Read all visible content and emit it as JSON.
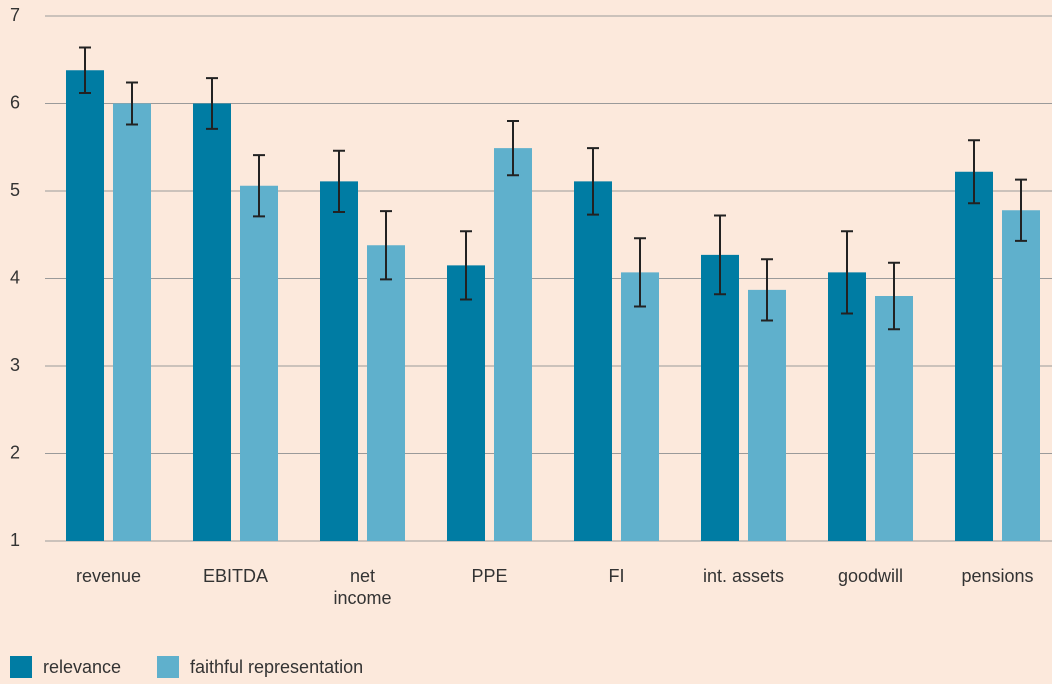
{
  "chart_data": {
    "type": "bar",
    "categories": [
      "revenue",
      "EBITDA",
      "net income",
      "PPE",
      "FI",
      "int. assets",
      "goodwill",
      "pensions"
    ],
    "series": [
      {
        "name": "relevance",
        "color": "#007ca3",
        "values": [
          6.38,
          6.0,
          5.11,
          4.15,
          5.11,
          4.27,
          4.07,
          5.22
        ],
        "errors": [
          0.26,
          0.29,
          0.35,
          0.39,
          0.38,
          0.45,
          0.47,
          0.36
        ]
      },
      {
        "name": "faithful representation",
        "color": "#5fb0cc",
        "values": [
          6.0,
          5.06,
          4.38,
          5.49,
          4.07,
          3.87,
          3.8,
          4.78
        ],
        "errors": [
          0.24,
          0.35,
          0.39,
          0.31,
          0.39,
          0.35,
          0.38,
          0.35
        ]
      }
    ],
    "ylim": [
      1,
      7
    ],
    "yticks": [
      1,
      2,
      3,
      4,
      5,
      6,
      7
    ],
    "grid": true,
    "legend": "bottom-left"
  }
}
